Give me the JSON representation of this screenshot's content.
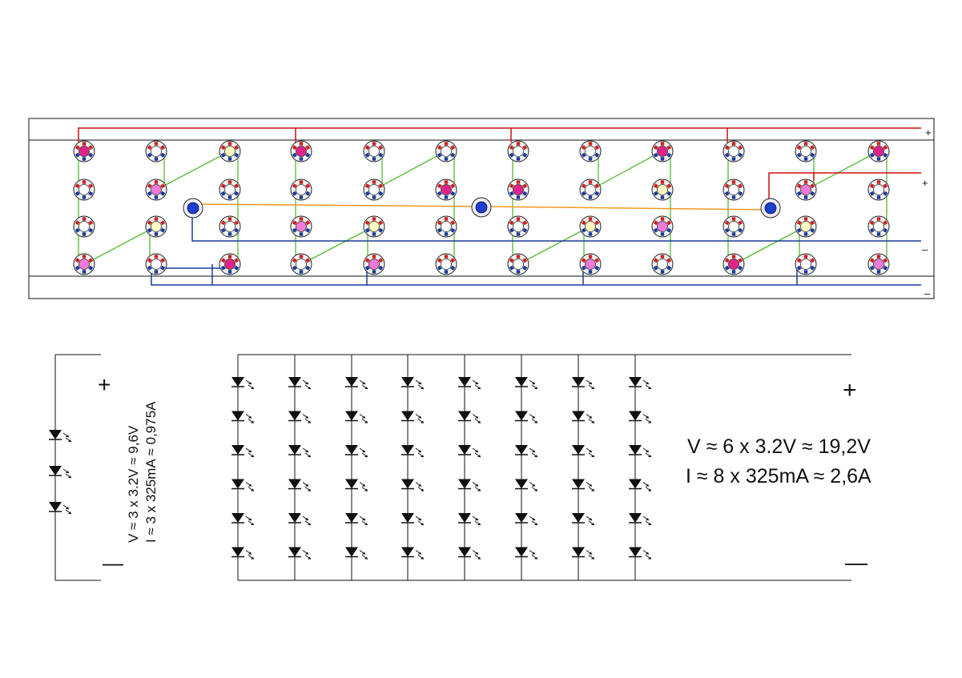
{
  "board": {
    "terminals": [
      {
        "id": "plus_a",
        "text": "+",
        "color": "#cc1111"
      },
      {
        "id": "plus_b",
        "text": "+",
        "color": "#cc1111"
      },
      {
        "id": "minus_a",
        "text": "–",
        "color": "#111111"
      },
      {
        "id": "minus_b",
        "text": "–",
        "color": "#111111"
      }
    ],
    "wire_colors": {
      "positive": "#cc1111",
      "negative": "#1a3a9a",
      "series": "#55bb33",
      "center": "#ee9922",
      "frame": "#111111"
    },
    "led_face_colors": [
      [
        "#e0238a",
        "#ffffff",
        "#fffac0",
        "#e0238a",
        "#ffffff",
        "#ffffff",
        "#ffffff",
        "#ffffff",
        "#e0238a",
        "#ffffff",
        "#ffffff",
        "#e0238a"
      ],
      [
        "#ffffff",
        "#f07ad8",
        "#ffffff",
        "#ffffff",
        "#ffffff",
        "#e0238a",
        "#e0238a",
        "#ffffff",
        "#fffac0",
        "#ffffff",
        "#f07ad8",
        "#ffffff"
      ],
      [
        "#ffffff",
        "#fffac0",
        "#ffffff",
        "#f07ad8",
        "#fffac0",
        "#ffffff",
        "#ffffff",
        "#fffac0",
        "#f07ad8",
        "#ffffff",
        "#fffac0",
        "#ffffff"
      ],
      [
        "#f07ad8",
        "#ffffff",
        "#e0238a",
        "#ffffff",
        "#f07ad8",
        "#ffffff",
        "#ffffff",
        "#f07ad8",
        "#ffffff",
        "#e0238a",
        "#ffffff",
        "#f07ad8"
      ]
    ],
    "blue_leds": 3,
    "blue_led_color": "#1b3fd0"
  },
  "schematic_small": {
    "plus": "+",
    "minus": "—",
    "voltage": "V ≈ 3 x 3.2V ≈ 9,6V",
    "current": "I ≈ 3 x 325mA ≈ 0,975A",
    "leds_in_series": 3
  },
  "schematic_large": {
    "plus": "+",
    "minus": "—",
    "voltage": "V ≈ 6 x 3.2V ≈ 19,2V",
    "current": "I ≈ 8 x 325mA ≈ 2,6A",
    "strings": 8,
    "leds_per_string": 6
  }
}
